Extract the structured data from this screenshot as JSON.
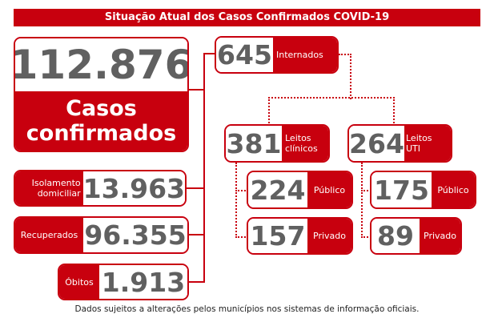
{
  "title": "Situação Atual dos Casos Confirmados COVID-19",
  "confirmed": {
    "value": "112.876",
    "label_line1": "Casos",
    "label_line2": "confirmados"
  },
  "isolation": {
    "value": "13.963",
    "label_line1": "Isolamento",
    "label_line2": "domiciliar"
  },
  "recovered": {
    "value": "96.355",
    "label": "Recuperados"
  },
  "deaths": {
    "value": "1.913",
    "label": "Óbitos"
  },
  "hospitalized": {
    "value": "645",
    "label": "Internados"
  },
  "clinical": {
    "value": "381",
    "label_line1": "Leitos",
    "label_line2": "clínicos",
    "public": {
      "value": "224",
      "label": "Público"
    },
    "private": {
      "value": "157",
      "label": "Privado"
    }
  },
  "icu": {
    "value": "264",
    "label_line1": "Leitos",
    "label_line2": "UTI",
    "public": {
      "value": "175",
      "label": "Público"
    },
    "private": {
      "value": "89",
      "label": "Privado"
    }
  },
  "footer": "Dados sujeitos a alterações pelos municípios nos sistemas de informação oficiais.",
  "colors": {
    "accent": "#c8000e",
    "number": "#606060"
  }
}
